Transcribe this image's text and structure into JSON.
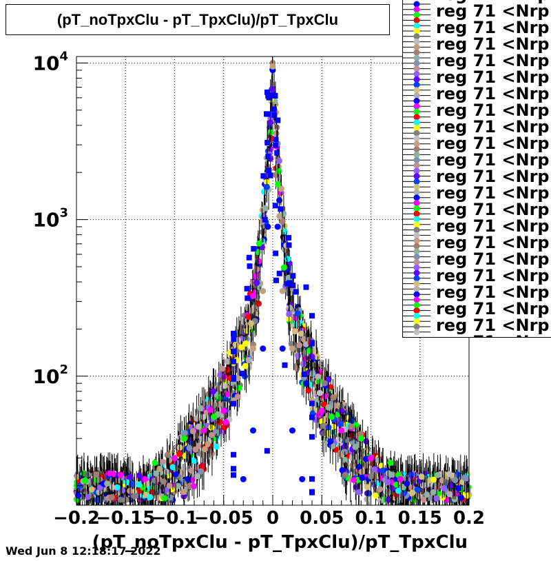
{
  "timestamp": "Wed Jun  8 12:18:17 2022",
  "chart_data": {
    "type": "scatter",
    "title": "(pT_noTpxClu - pT_TpxClu)/pT_TpxClu",
    "xlabel": "(pT_noTpxClu - pT_TpxClu)/pT_TpxClu",
    "ylabel": "",
    "xlim": [
      -0.2,
      0.2
    ],
    "ylim": [
      15,
      11000
    ],
    "y_log_scale": true,
    "grid": true,
    "legend_placement": "top-right",
    "x_ticks": [
      "−0.2",
      "−0.15",
      "−0.1",
      "−0.05",
      "0",
      "0.05",
      "0.1",
      "0.15",
      "0.2"
    ],
    "x_tick_values": [
      -0.2,
      -0.15,
      -0.1,
      -0.05,
      0,
      0.05,
      0.1,
      0.15,
      0.2
    ],
    "y_ticks": [
      {
        "value": 100,
        "base": "10",
        "exp": "2"
      },
      {
        "value": 1000,
        "base": "10",
        "exp": "3"
      },
      {
        "value": 10000,
        "base": "10",
        "exp": "4"
      }
    ],
    "legend_visible_text": "reg 71 <Nrp",
    "series_colors": [
      "#0000ff",
      "#ff00ff",
      "#00ff00",
      "#ff0000",
      "#00ffff",
      "#ffff00",
      "#808080",
      "#c0c0c0",
      "#c0a080",
      "#a08070",
      "#90b0a0",
      "#8090b0",
      "#c09090",
      "#9060ff",
      "#6000ff",
      "#0040ff",
      "#d0c080",
      "#b0b0b0"
    ],
    "series": [
      {
        "color": "#0000ff",
        "x": [
          -0.01,
          -0.005,
          0,
          0.005,
          0.01,
          -0.02,
          0.02,
          -0.03,
          0.03
        ],
        "y": [
          150,
          900,
          9000,
          900,
          150,
          45,
          45,
          22,
          22
        ]
      },
      {
        "color": "#c0a080",
        "x": [
          -0.04,
          -0.02,
          -0.01,
          0,
          0.01,
          0.02,
          0.04
        ],
        "y": [
          70,
          150,
          350,
          9500,
          350,
          150,
          70
        ]
      },
      {
        "color": "#ff00ff",
        "x": [
          -0.13,
          -0.1,
          -0.07,
          -0.05,
          0.05,
          0.07,
          0.1,
          0.13
        ],
        "y": [
          22,
          30,
          45,
          60,
          60,
          45,
          30,
          22
        ]
      },
      {
        "color": "#00ff00",
        "x": [
          -0.12,
          -0.09,
          -0.06,
          0.06,
          0.09,
          0.12
        ],
        "y": [
          28,
          40,
          55,
          55,
          40,
          28
        ]
      }
    ]
  }
}
